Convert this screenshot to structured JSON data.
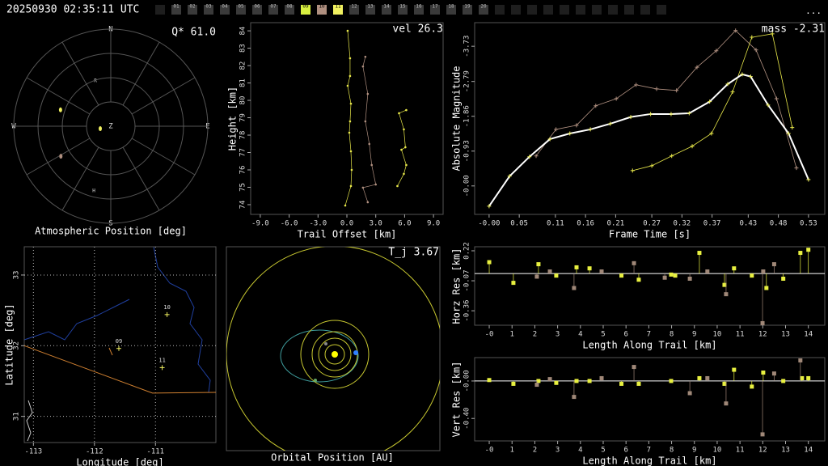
{
  "header": {
    "timestamp": "20250930 02:35:11 UTC",
    "menu": "...",
    "frames": [
      "01",
      "02",
      "03",
      "04",
      "05",
      "06",
      "07",
      "08",
      "09",
      "10",
      "11",
      "12",
      "13",
      "14",
      "15",
      "16",
      "17",
      "18",
      "19",
      "20"
    ],
    "frame_colors": [
      "#3a3a3a",
      "#3a3a3a",
      "#3a3a3a",
      "#3a3a3a",
      "#3a3a3a",
      "#3a3a3a",
      "#3a3a3a",
      "#3a3a3a",
      "#d8f040",
      "#b09080",
      "#f0f060",
      "#3a3a3a",
      "#3a3a3a",
      "#3a3a3a",
      "#3a3a3a",
      "#3a3a3a",
      "#3a3a3a",
      "#3a3a3a",
      "#3a3a3a",
      "#3a3a3a"
    ]
  },
  "polar": {
    "title": "Atmospheric Position [deg]",
    "stat": "Q* 61.0",
    "north": "N",
    "south": "S",
    "east": "E",
    "west": "W",
    "zenith": "Z",
    "label_r": "R",
    "label_h": "H",
    "points": [
      {
        "az": 288,
        "el": 41,
        "color": "#f0f060"
      },
      {
        "az": 239,
        "el": 36,
        "color": "#b09080"
      },
      {
        "az": 257,
        "el": 80,
        "color": "#f0f060"
      }
    ]
  },
  "height_plot": {
    "stat": "vel 26.3",
    "ylabel": "Height [km]",
    "xlabel": "Trail Offset [km]",
    "xlim": [
      -10,
      10
    ],
    "ylim": [
      73.44,
      84.47
    ],
    "xticks": [
      {
        "value": -9,
        "label": "-9.0"
      },
      {
        "value": -6,
        "label": "-6.0"
      },
      {
        "value": -3,
        "label": "-3.0"
      },
      {
        "value": 0,
        "label": "0.0"
      },
      {
        "value": 3,
        "label": "3.0"
      },
      {
        "value": 6,
        "label": "6.0"
      },
      {
        "value": 9,
        "label": "9.0"
      }
    ],
    "yticks": [
      74,
      75,
      76,
      77,
      78,
      79,
      80,
      81,
      82,
      83,
      84
    ],
    "series": [
      {
        "color": "#e8e84a",
        "x": [
          0.08,
          0.33,
          0.33,
          0.08,
          0.42,
          0.33,
          0.25,
          0.42,
          0.5,
          0.42,
          -0.17
        ],
        "values": [
          84.0,
          82.42,
          81.4,
          80.84,
          79.81,
          78.79,
          78.14,
          77.07,
          76.0,
          75.07,
          73.95
        ]
      },
      {
        "color": "#b09080",
        "x": [
          1.92,
          1.67,
          2.17,
          1.92,
          2.33,
          2.58,
          3.0,
          1.67,
          2.17
        ],
        "values": [
          82.51,
          81.95,
          80.37,
          78.79,
          77.49,
          76.28,
          75.16,
          74.98,
          74.14
        ]
      },
      {
        "color": "#e8e84a",
        "x": [
          6.17,
          5.42,
          5.92,
          6.08,
          5.67,
          6.17,
          5.92,
          5.25
        ],
        "values": [
          79.44,
          79.26,
          78.33,
          77.3,
          77.16,
          76.28,
          75.77,
          75.07
        ]
      }
    ]
  },
  "mag_plot": {
    "stat": "mass -2.31",
    "ylabel": "Absolute Magnitude",
    "xlabel": "Frame Time [s]",
    "xlim": [
      -0.024,
      0.557
    ],
    "ylim": [
      0.76,
      -4.36
    ],
    "xticks": [
      {
        "value": 0,
        "label": "-0.00"
      },
      {
        "value": 0.05,
        "label": "0.05"
      },
      {
        "value": 0.11,
        "label": "0.11"
      },
      {
        "value": 0.16,
        "label": "0.16"
      },
      {
        "value": 0.21,
        "label": "0.21"
      },
      {
        "value": 0.27,
        "label": "0.27"
      },
      {
        "value": 0.32,
        "label": "0.32"
      },
      {
        "value": 0.37,
        "label": "0.37"
      },
      {
        "value": 0.43,
        "label": "0.43"
      },
      {
        "value": 0.48,
        "label": "0.48"
      },
      {
        "value": 0.53,
        "label": "0.53"
      }
    ],
    "yticks": [
      {
        "value": -3.73,
        "label": "-3.73"
      },
      {
        "value": -2.79,
        "label": "-2.79"
      },
      {
        "value": -1.86,
        "label": "-1.86"
      },
      {
        "value": -0.93,
        "label": "-0.93"
      },
      {
        "value": 0,
        "label": "-0.00"
      }
    ],
    "series": [
      {
        "color": "#b09080",
        "width": 0.8,
        "x": [
          0.078,
          0.111,
          0.145,
          0.177,
          0.211,
          0.244,
          0.278,
          0.311,
          0.345,
          0.377,
          0.409,
          0.443,
          0.477,
          0.51
        ],
        "values": [
          -0.8,
          -1.51,
          -1.62,
          -2.14,
          -2.33,
          -2.7,
          -2.59,
          -2.55,
          -3.17,
          -3.61,
          -4.15,
          -3.63,
          -2.33,
          -0.48
        ]
      },
      {
        "color": "#e8e84a",
        "width": 0.8,
        "x": [
          0.238,
          0.27,
          0.303,
          0.337,
          0.369,
          0.404,
          0.436,
          0.47,
          0.503
        ],
        "values": [
          -0.41,
          -0.54,
          -0.8,
          -1.06,
          -1.4,
          -2.51,
          -3.97,
          -4.06,
          -1.56
        ]
      },
      {
        "color": "#ffffff",
        "width": 2,
        "x": [
          0,
          0.034,
          0.067,
          0.101,
          0.134,
          0.168,
          0.201,
          0.235,
          0.268,
          0.302,
          0.332,
          0.366,
          0.396,
          0.42,
          0.434,
          0.463,
          0.497,
          0.53
        ],
        "values": [
          0.54,
          -0.26,
          -0.78,
          -1.25,
          -1.4,
          -1.51,
          -1.66,
          -1.84,
          -1.92,
          -1.92,
          -1.94,
          -2.25,
          -2.72,
          -2.98,
          -2.92,
          -2.16,
          -1.4,
          -0.17
        ]
      }
    ]
  },
  "map": {
    "ylabel": "Latitude [deg]",
    "xlabel": "Longitude [deg]",
    "xlim": [
      -113.15,
      -110.01
    ],
    "ylim": [
      30.63,
      33.4
    ],
    "xticks": [
      -113,
      -112,
      -111
    ],
    "yticks": [
      31,
      32,
      33
    ],
    "stations": [
      {
        "label": "09",
        "lon": -111.6,
        "lat": 31.96
      },
      {
        "label": "10",
        "lon": -110.81,
        "lat": 32.44
      },
      {
        "label": "11",
        "lon": -110.89,
        "lat": 31.69
      }
    ],
    "ground_track": {
      "color": "#d08030",
      "lon": [
        -113.15,
        -111.05,
        -110.01
      ],
      "lat": [
        32.0,
        31.33,
        31.34
      ]
    }
  },
  "orbit": {
    "title": "Orbital Position [AU]",
    "stat": "T_j 3.67"
  },
  "horz_res": {
    "ylabel": "Horz Res [km]",
    "xlabel": "Length Along Trail [km]",
    "xlim": [
      -0.64,
      14.72
    ],
    "ylim": [
      -0.5,
      0.259
    ],
    "xticks": [
      {
        "value": 0,
        "label": "-0"
      },
      1,
      2,
      3,
      4,
      5,
      6,
      7,
      8,
      9,
      10,
      11,
      12,
      13,
      14
    ],
    "yticks": [
      {
        "value": 0.22,
        "label": "0.22"
      },
      {
        "value": -0.07,
        "label": "-0.07"
      },
      {
        "value": -0.36,
        "label": "-0.36"
      }
    ],
    "series": [
      {
        "color": "#e8f040",
        "x": [
          0,
          1.06,
          2.16,
          2.94,
          3.83,
          4.4,
          5.8,
          6.56,
          7.98,
          8.16,
          9.22,
          10.32,
          10.74,
          11.52,
          12.16,
          12.9,
          13.65,
          14.0
        ],
        "values": [
          0.11,
          -0.09,
          0.09,
          -0.02,
          0.06,
          0.05,
          -0.02,
          -0.06,
          -0.01,
          -0.02,
          0.2,
          -0.11,
          0.05,
          -0.02,
          -0.14,
          -0.05,
          0.2,
          0.23
        ]
      },
      {
        "color": "#a08878",
        "x": [
          2.09,
          2.66,
          3.72,
          4.93,
          6.35,
          7.7,
          8.8,
          9.57,
          10.39,
          11.99,
          12.5,
          12.02
        ],
        "values": [
          -0.03,
          0.02,
          -0.14,
          0.02,
          0.1,
          -0.04,
          -0.05,
          0.02,
          -0.2,
          -0.48,
          0.09,
          0.02
        ]
      }
    ]
  },
  "vert_res": {
    "ylabel": "Vert Res [km]",
    "xlabel": "Length Along Trail [km]",
    "xlim": [
      -0.64,
      14.72
    ],
    "ylim": [
      -0.64,
      0.25
    ],
    "xticks": [
      {
        "value": 0,
        "label": "-0"
      },
      1,
      2,
      3,
      4,
      5,
      6,
      7,
      8,
      9,
      10,
      11,
      12,
      13,
      14
    ],
    "yticks": [
      {
        "value": 0,
        "label": "-0.00"
      },
      {
        "value": -0.4,
        "label": "-0.40"
      }
    ],
    "series": [
      {
        "color": "#e8f040",
        "x": [
          0,
          1.06,
          2.16,
          2.94,
          3.83,
          4.4,
          5.8,
          6.56,
          7.98,
          9.22,
          10.32,
          10.74,
          11.52,
          12.02,
          12.9,
          13.72,
          14.0
        ],
        "values": [
          0.01,
          -0.03,
          0,
          -0.02,
          0,
          0,
          -0.03,
          -0.03,
          0,
          0.03,
          -0.03,
          0.12,
          -0.06,
          0.09,
          0,
          0.03,
          0.03
        ]
      },
      {
        "color": "#a08878",
        "x": [
          2.09,
          2.66,
          3.72,
          4.93,
          6.35,
          8.8,
          9.57,
          10.39,
          11.99,
          12.5,
          13.65
        ],
        "values": [
          -0.04,
          0.02,
          -0.17,
          0.03,
          0.15,
          -0.13,
          0.03,
          -0.24,
          -0.57,
          0.08,
          0.22
        ]
      }
    ]
  }
}
